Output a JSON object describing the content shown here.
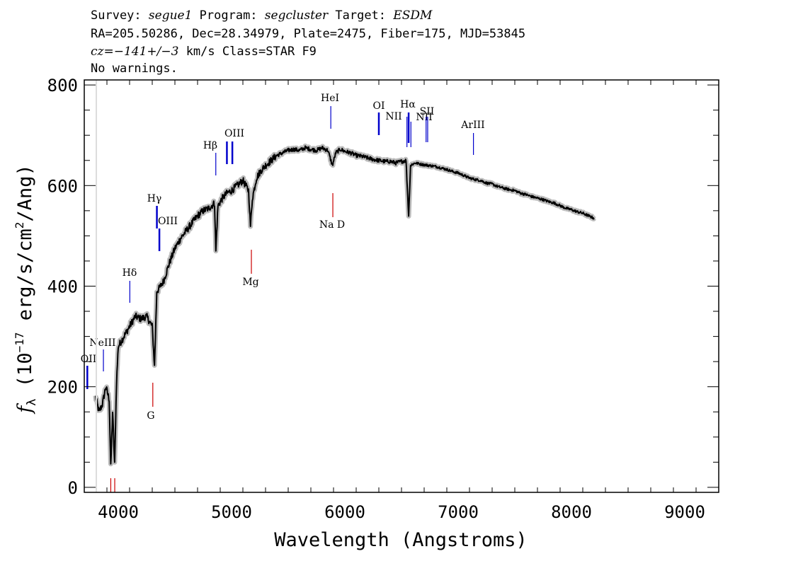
{
  "header": {
    "survey_label": "Survey:",
    "survey_value": "segue1",
    "program_label": "Program:",
    "program_value": "segcluster",
    "target_label": "Target:",
    "target_value": "ESDM",
    "line2": "RA=205.50286, Dec=28.34979, Plate=2475, Fiber=175, MJD=53845",
    "cz_value": "cz=−141+/−3",
    "cz_rest": " km/s Class=STAR F9",
    "line4": "No warnings."
  },
  "chart_data": {
    "type": "line",
    "xlabel": "Wavelength (Angstroms)",
    "ylabel_prefix": "f",
    "ylabel_sub": "λ",
    "ylabel_mid": " (10",
    "ylabel_exp": "−17",
    "ylabel_mid2": " erg/s/cm",
    "ylabel_exp2": "2",
    "ylabel_end": "/Ang)",
    "xlim": [
      3700,
      9300
    ],
    "ylim": [
      -10,
      810
    ],
    "x_ticks": [
      4000,
      5000,
      6000,
      7000,
      8000,
      9000
    ],
    "x_tick_labels": [
      "4000",
      "5000",
      "6000",
      "7000",
      "8000",
      "9000"
    ],
    "y_ticks": [
      0,
      200,
      400,
      600,
      800
    ],
    "y_tick_labels": [
      "0",
      "200",
      "400",
      "600",
      "800"
    ],
    "grid": false,
    "series": [
      {
        "style": "black-line-with-grey-error",
        "x": [
          3800,
          3830,
          3860,
          3890,
          3920,
          3934,
          3950,
          3968,
          3985,
          4000,
          4050,
          4100,
          4150,
          4200,
          4250,
          4300,
          4320,
          4340,
          4360,
          4400,
          4450,
          4500,
          4550,
          4600,
          4650,
          4700,
          4750,
          4800,
          4850,
          4861,
          4880,
          4920,
          4960,
          5000,
          5050,
          5100,
          5150,
          5167,
          5184,
          5220,
          5260,
          5300,
          5350,
          5400,
          5450,
          5500,
          5550,
          5600,
          5650,
          5700,
          5750,
          5800,
          5850,
          5890,
          5920,
          5960,
          6000,
          6050,
          6100,
          6150,
          6200,
          6250,
          6300,
          6350,
          6400,
          6450,
          6500,
          6540,
          6563,
          6580,
          6620,
          6680,
          6740,
          6800,
          6850,
          6900,
          6950,
          7000,
          7050,
          7100,
          7150,
          7200,
          7250,
          7300,
          7350,
          7400,
          7450,
          7500,
          7550,
          7600,
          7650,
          7700,
          7750,
          7800,
          7850,
          7900,
          7950,
          8000,
          8050,
          8100,
          8150,
          8200
        ],
        "y": [
          180,
          150,
          165,
          200,
          175,
          40,
          150,
          45,
          210,
          280,
          300,
          320,
          340,
          335,
          340,
          320,
          240,
          390,
          395,
          410,
          445,
          475,
          495,
          510,
          525,
          540,
          550,
          555,
          565,
          470,
          560,
          575,
          585,
          590,
          600,
          610,
          590,
          520,
          575,
          615,
          630,
          640,
          650,
          660,
          665,
          670,
          672,
          670,
          675,
          672,
          670,
          675,
          670,
          640,
          665,
          672,
          668,
          665,
          660,
          658,
          655,
          652,
          650,
          648,
          648,
          645,
          648,
          650,
          540,
          640,
          645,
          642,
          640,
          638,
          635,
          632,
          628,
          625,
          620,
          615,
          612,
          610,
          605,
          603,
          598,
          595,
          592,
          590,
          585,
          582,
          578,
          575,
          572,
          568,
          565,
          560,
          555,
          552,
          548,
          545,
          540,
          535
        ]
      }
    ],
    "emission_lines": [
      {
        "name": "OII",
        "wave": 3727,
        "color": "#0000cc"
      },
      {
        "name": "NeIII",
        "wave": 3869,
        "color": "#0000cc"
      },
      {
        "name": "Hδ",
        "wave": 4102,
        "color": "#0000cc"
      },
      {
        "name": "Hγ",
        "wave": 4341,
        "color": "#0000cc"
      },
      {
        "name": "OIII",
        "wave": 4363,
        "color": "#0000cc"
      },
      {
        "name": "Hβ",
        "wave": 4861,
        "color": "#0000cc"
      },
      {
        "name": "OIII",
        "wave": 4959,
        "color": "#0000cc"
      },
      {
        "name": "",
        "wave": 5007,
        "color": "#0000cc"
      },
      {
        "name": "HeI",
        "wave": 5876,
        "color": "#0000cc"
      },
      {
        "name": "OI",
        "wave": 6300,
        "color": "#0000cc"
      },
      {
        "name": "NII",
        "wave": 6548,
        "color": "#0000cc"
      },
      {
        "name": "Hα",
        "wave": 6563,
        "color": "#0000cc"
      },
      {
        "name": "NII",
        "wave": 6583,
        "color": "#0000cc"
      },
      {
        "name": "SII",
        "wave": 6717,
        "color": "#0000cc"
      },
      {
        "name": "",
        "wave": 6731,
        "color": "#0000cc"
      },
      {
        "name": "ArIII",
        "wave": 7135,
        "color": "#0000cc"
      }
    ],
    "absorption_lines": [
      {
        "name": "",
        "wave": 3934,
        "color": "#cc0000"
      },
      {
        "name": "",
        "wave": 3969,
        "color": "#cc0000"
      },
      {
        "name": "G",
        "wave": 4305,
        "color": "#cc0000"
      },
      {
        "name": "Mg",
        "wave": 5175,
        "color": "#cc0000"
      },
      {
        "name": "Na D",
        "wave": 5894,
        "color": "#cc0000"
      }
    ]
  }
}
